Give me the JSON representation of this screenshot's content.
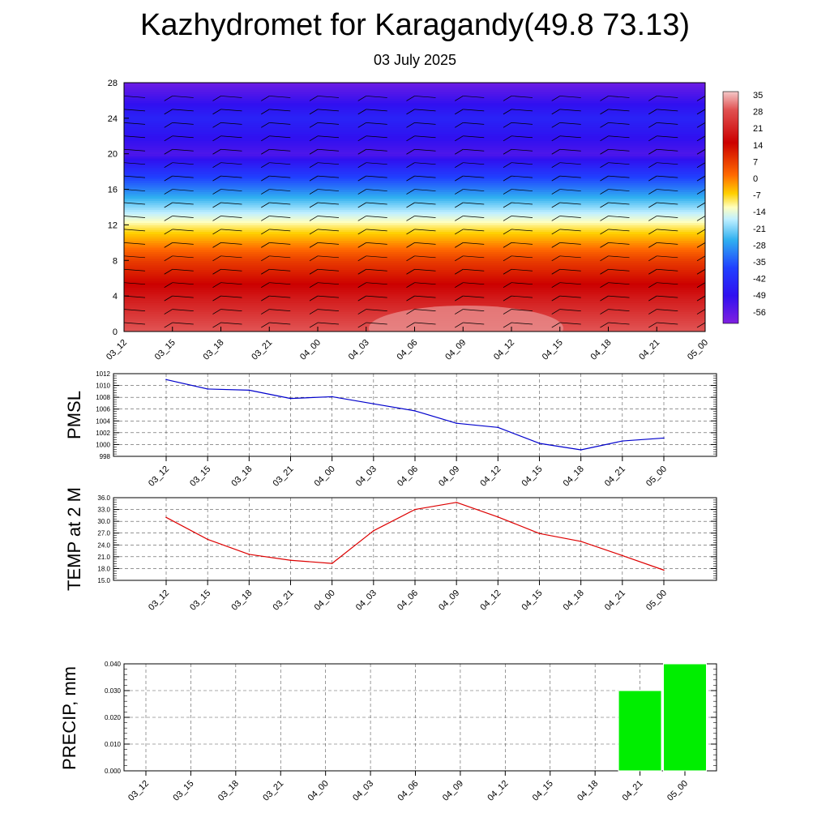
{
  "title": "Kazhydromet for Karagandy(49.8 73.13)",
  "subtitle": "03 July 2025",
  "time_labels": [
    "03_12",
    "03_15",
    "03_18",
    "03_21",
    "04_00",
    "04_03",
    "04_06",
    "04_09",
    "04_12",
    "04_15",
    "04_18",
    "04_21",
    "05_00"
  ],
  "colors": {
    "pmsl_line": "#0000cc",
    "temp_line": "#dd0000",
    "precip_bar": "#00ee00",
    "gridline": "#555555"
  },
  "chart_data": [
    {
      "type": "heatmap",
      "name": "contour",
      "x": [
        "03_12",
        "03_15",
        "03_18",
        "03_21",
        "04_00",
        "04_03",
        "04_06",
        "04_09",
        "04_12",
        "04_15",
        "04_18",
        "04_21",
        "05_00"
      ],
      "ylim": [
        0,
        28
      ],
      "yticks": [
        "0",
        "4",
        "8",
        "12",
        "16",
        "20",
        "24",
        "28"
      ],
      "colorbar_labels": [
        "35",
        "28",
        "21",
        "14",
        "7",
        "0",
        "-7",
        "-14",
        "-21",
        "-28",
        "-35",
        "-42",
        "-49",
        "-56"
      ],
      "colorbar_range": [
        -60,
        38
      ],
      "levels": [
        0,
        4,
        8,
        12,
        16,
        20,
        24,
        28
      ],
      "values_by_level": [
        29,
        18,
        6,
        -12,
        -35,
        -55,
        -48,
        -58
      ],
      "annotations": "wind barbs overlay"
    },
    {
      "type": "line",
      "name": "pmsl",
      "ylabel": "PMSL",
      "x": [
        "03_12",
        "03_15",
        "03_18",
        "03_21",
        "04_00",
        "04_03",
        "04_06",
        "04_09",
        "04_12",
        "04_15",
        "04_18",
        "04_21",
        "05_00"
      ],
      "y": [
        1011.0,
        1009.4,
        1009.2,
        1007.8,
        1008.1,
        1006.9,
        1005.7,
        1003.6,
        1002.9,
        1000.2,
        999.1,
        1000.6,
        1001.1
      ],
      "ylim": [
        998,
        1012
      ],
      "yticks": [
        "998",
        "1000",
        "1002",
        "1004",
        "1006",
        "1008",
        "1010",
        "1012"
      ],
      "grid": true
    },
    {
      "type": "line",
      "name": "temp",
      "ylabel": "TEMP at 2 M",
      "x": [
        "03_12",
        "03_15",
        "03_18",
        "03_21",
        "04_00",
        "04_03",
        "04_06",
        "04_09",
        "04_12",
        "04_15",
        "04_18",
        "04_21",
        "05_00"
      ],
      "y": [
        31.0,
        25.4,
        21.6,
        20.1,
        19.3,
        27.6,
        33.0,
        34.8,
        31.1,
        26.9,
        24.9,
        21.3,
        17.6
      ],
      "ylim": [
        15,
        36
      ],
      "yticks": [
        "15.0",
        "18.0",
        "21.0",
        "24.0",
        "27.0",
        "30.0",
        "33.0",
        "36.0"
      ],
      "grid": true
    },
    {
      "type": "bar",
      "name": "precip",
      "ylabel": "PRECIP, mm",
      "categories": [
        "03_12",
        "03_15",
        "03_18",
        "03_21",
        "04_00",
        "04_03",
        "04_06",
        "04_09",
        "04_12",
        "04_15",
        "04_18",
        "04_21",
        "05_00"
      ],
      "values": [
        0,
        0,
        0,
        0,
        0,
        0,
        0,
        0,
        0,
        0,
        0,
        0.03,
        0.04
      ],
      "ylim": [
        0,
        0.04
      ],
      "yticks": [
        "0.000",
        "0.010",
        "0.020",
        "0.030",
        "0.040"
      ],
      "grid": true
    }
  ]
}
